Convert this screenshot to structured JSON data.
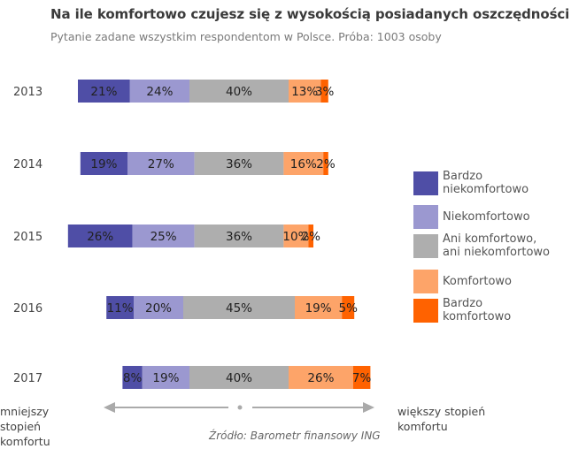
{
  "header": {
    "title": "Na ile komfortowo czujesz się z wysokością posiadanych oszczędności",
    "subtitle": "Pytanie zadane wszystkim respondentom w Polsce. Próba: 1003 osoby"
  },
  "footer": {
    "source": "Źródło: Barometr finansowy ING",
    "axis_left": "mniejszy\nstopień\nkomfortu",
    "axis_right": "większy stopień\nkomfortu"
  },
  "chart_data": {
    "type": "bar",
    "orientation": "horizontal",
    "stacked": true,
    "diverging": true,
    "categories": [
      "2013",
      "2014",
      "2015",
      "2016",
      "2017"
    ],
    "series": [
      {
        "name": "Bardzo niekomfortowo",
        "color": "#4f4ea6",
        "values": [
          21,
          19,
          26,
          11,
          8
        ]
      },
      {
        "name": "Niekomfortowo",
        "color": "#9b98d0",
        "values": [
          24,
          27,
          25,
          20,
          19
        ]
      },
      {
        "name": "Ani komfortowo, ani niekomfortowo",
        "color": "#aeaeae",
        "values": [
          40,
          36,
          36,
          45,
          40
        ]
      },
      {
        "name": "Komfortowo",
        "color": "#fda469",
        "values": [
          13,
          16,
          10,
          19,
          26
        ]
      },
      {
        "name": "Bardzo komfortowo",
        "color": "#ff6200",
        "values": [
          3,
          2,
          2,
          5,
          7
        ]
      }
    ],
    "data_labels": [
      [
        "21%",
        "24%",
        "40%",
        "13%",
        "3%"
      ],
      [
        "19%",
        "27%",
        "36%",
        "16%",
        "2%"
      ],
      [
        "26%",
        "25%",
        "36%",
        "10%",
        "2%"
      ],
      [
        "11%",
        "20%",
        "45%",
        "19%",
        "5%"
      ],
      [
        "8%",
        "19%",
        "40%",
        "26%",
        "7%"
      ]
    ],
    "legend_position": "right",
    "grid": false
  }
}
